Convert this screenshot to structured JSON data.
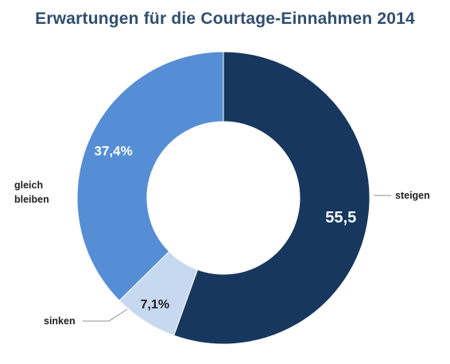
{
  "chart_data": {
    "type": "pie",
    "style": "donut",
    "title": "Erwartungen für die Courtage-Einnahmen 2014",
    "slices": [
      {
        "label": "steigen",
        "value": 55.5,
        "value_label": "55,5",
        "color": "#17375e",
        "text_color": "#ffffff"
      },
      {
        "label": "sinken",
        "value": 7.1,
        "value_label": "7,1%",
        "color": "#c6d9f1",
        "text_color": "#222222"
      },
      {
        "label": "gleich bleiben",
        "label_lines": [
          "gleich",
          "bleiben"
        ],
        "value": 37.4,
        "value_label": "37,4%",
        "color": "#558ed5",
        "text_color": "#ffffff"
      }
    ],
    "legend": "none"
  }
}
